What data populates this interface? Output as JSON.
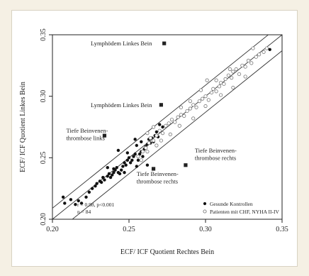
{
  "chart_data": {
    "type": "scatter",
    "xlabel": "ECF/ ICF  Quotient Rechtes Bein",
    "ylabel": "ECF/ ICF  Quotient Linkes Bein",
    "xlim": [
      0.2,
      0.35
    ],
    "ylim": [
      0.2,
      0.35
    ],
    "xticks": [
      0.2,
      0.25,
      0.3,
      0.35
    ],
    "yticks": [
      0.2,
      0.25,
      0.3,
      0.35
    ],
    "tick_labels": [
      "0.20",
      "0.25",
      "0.30",
      "0.35"
    ],
    "series": [
      {
        "name": "Gesunde Kontrollen",
        "marker": "filled",
        "points": [
          [
            0.207,
            0.218
          ],
          [
            0.208,
            0.213
          ],
          [
            0.212,
            0.216
          ],
          [
            0.215,
            0.212
          ],
          [
            0.217,
            0.215
          ],
          [
            0.219,
            0.213
          ],
          [
            0.222,
            0.218
          ],
          [
            0.224,
            0.222
          ],
          [
            0.226,
            0.225
          ],
          [
            0.228,
            0.227
          ],
          [
            0.229,
            0.229
          ],
          [
            0.231,
            0.231
          ],
          [
            0.232,
            0.23
          ],
          [
            0.233,
            0.234
          ],
          [
            0.234,
            0.232
          ],
          [
            0.236,
            0.235
          ],
          [
            0.237,
            0.237
          ],
          [
            0.238,
            0.234
          ],
          [
            0.239,
            0.236
          ],
          [
            0.24,
            0.238
          ],
          [
            0.24,
            0.241
          ],
          [
            0.241,
            0.24
          ],
          [
            0.242,
            0.242
          ],
          [
            0.243,
            0.238
          ],
          [
            0.244,
            0.237
          ],
          [
            0.245,
            0.24
          ],
          [
            0.246,
            0.243
          ],
          [
            0.247,
            0.246
          ],
          [
            0.248,
            0.244
          ],
          [
            0.249,
            0.248
          ],
          [
            0.25,
            0.25
          ],
          [
            0.251,
            0.246
          ],
          [
            0.252,
            0.248
          ],
          [
            0.253,
            0.251
          ],
          [
            0.254,
            0.253
          ],
          [
            0.255,
            0.243
          ],
          [
            0.256,
            0.248
          ],
          [
            0.257,
            0.253
          ],
          [
            0.258,
            0.255
          ],
          [
            0.259,
            0.251
          ],
          [
            0.26,
            0.257
          ],
          [
            0.261,
            0.259
          ],
          [
            0.262,
            0.261
          ],
          [
            0.263,
            0.265
          ],
          [
            0.264,
            0.262
          ],
          [
            0.265,
            0.266
          ],
          [
            0.266,
            0.263
          ],
          [
            0.267,
            0.268
          ],
          [
            0.268,
            0.271
          ],
          [
            0.269,
            0.267
          ],
          [
            0.254,
            0.265
          ],
          [
            0.243,
            0.256
          ],
          [
            0.236,
            0.242
          ],
          [
            0.247,
            0.238
          ],
          [
            0.262,
            0.244
          ],
          [
            0.272,
            0.275
          ],
          [
            0.27,
            0.277
          ],
          [
            0.258,
            0.263
          ],
          [
            0.255,
            0.26
          ],
          [
            0.249,
            0.254
          ],
          [
            0.342,
            0.338
          ]
        ]
      },
      {
        "name": "Patienten mit CHF,  NYHA II-IV",
        "marker": "open",
        "points": [
          [
            0.256,
            0.251
          ],
          [
            0.259,
            0.255
          ],
          [
            0.261,
            0.258
          ],
          [
            0.263,
            0.262
          ],
          [
            0.264,
            0.266
          ],
          [
            0.266,
            0.264
          ],
          [
            0.268,
            0.268
          ],
          [
            0.27,
            0.272
          ],
          [
            0.272,
            0.27
          ],
          [
            0.274,
            0.276
          ],
          [
            0.276,
            0.278
          ],
          [
            0.278,
            0.281
          ],
          [
            0.28,
            0.279
          ],
          [
            0.282,
            0.283
          ],
          [
            0.284,
            0.285
          ],
          [
            0.286,
            0.284
          ],
          [
            0.288,
            0.288
          ],
          [
            0.29,
            0.29
          ],
          [
            0.292,
            0.293
          ],
          [
            0.294,
            0.291
          ],
          [
            0.296,
            0.296
          ],
          [
            0.298,
            0.298
          ],
          [
            0.3,
            0.3
          ],
          [
            0.302,
            0.297
          ],
          [
            0.304,
            0.303
          ],
          [
            0.305,
            0.306
          ],
          [
            0.307,
            0.304
          ],
          [
            0.309,
            0.308
          ],
          [
            0.31,
            0.311
          ],
          [
            0.312,
            0.31
          ],
          [
            0.313,
            0.314
          ],
          [
            0.315,
            0.317
          ],
          [
            0.317,
            0.315
          ],
          [
            0.318,
            0.32
          ],
          [
            0.32,
            0.322
          ],
          [
            0.322,
            0.318
          ],
          [
            0.324,
            0.325
          ],
          [
            0.326,
            0.324
          ],
          [
            0.328,
            0.329
          ],
          [
            0.33,
            0.327
          ],
          [
            0.333,
            0.332
          ],
          [
            0.335,
            0.334
          ],
          [
            0.338,
            0.336
          ],
          [
            0.34,
            0.339
          ],
          [
            0.326,
            0.316
          ],
          [
            0.318,
            0.307
          ],
          [
            0.31,
            0.301
          ],
          [
            0.3,
            0.292
          ],
          [
            0.292,
            0.282
          ],
          [
            0.283,
            0.276
          ],
          [
            0.277,
            0.269
          ],
          [
            0.271,
            0.264
          ],
          [
            0.268,
            0.26
          ],
          [
            0.262,
            0.255
          ],
          [
            0.258,
            0.248
          ],
          [
            0.297,
            0.305
          ],
          [
            0.307,
            0.313
          ],
          [
            0.316,
            0.322
          ],
          [
            0.29,
            0.296
          ],
          [
            0.284,
            0.291
          ],
          [
            0.266,
            0.275
          ],
          [
            0.262,
            0.27
          ],
          [
            0.301,
            0.313
          ],
          [
            0.331,
            0.339
          ]
        ]
      }
    ],
    "outliers": [
      {
        "marker": "filled-square",
        "x": 0.273,
        "y": 0.343
      },
      {
        "marker": "filled-square",
        "x": 0.271,
        "y": 0.293
      },
      {
        "marker": "filled-square",
        "x": 0.234,
        "y": 0.268
      },
      {
        "marker": "filled-square",
        "x": 0.287,
        "y": 0.244
      },
      {
        "marker": "filled-square",
        "x": 0.266,
        "y": 0.241
      }
    ],
    "reference_lines": [
      {
        "intercept": 0.0,
        "slope": 1
      },
      {
        "intercept": 0.009,
        "slope": 1
      },
      {
        "intercept": -0.013,
        "slope": 1
      }
    ],
    "annotations": [
      {
        "text": "Lymphödem Linkes Bein",
        "x": 0.225,
        "y": 0.343
      },
      {
        "text": "Lymphödem Linkes Bein",
        "x": 0.225,
        "y": 0.293
      },
      {
        "text": "Tiefe Beinvenen-",
        "x": 0.209,
        "y": 0.272
      },
      {
        "text": "thrombose links",
        "x": 0.209,
        "y": 0.266
      },
      {
        "text": "Tiefe Beinvenen-",
        "x": 0.293,
        "y": 0.256
      },
      {
        "text": "thrombose rechts",
        "x": 0.293,
        "y": 0.25
      },
      {
        "text": "Tiefe Beinvenen-",
        "x": 0.255,
        "y": 0.237
      },
      {
        "text": "thrombose rechts",
        "x": 0.255,
        "y": 0.231
      }
    ],
    "stats_text": [
      "r = 0.98,  p<0.001",
      "n = 84"
    ],
    "legend_position": "bottom-right",
    "grid": false
  }
}
